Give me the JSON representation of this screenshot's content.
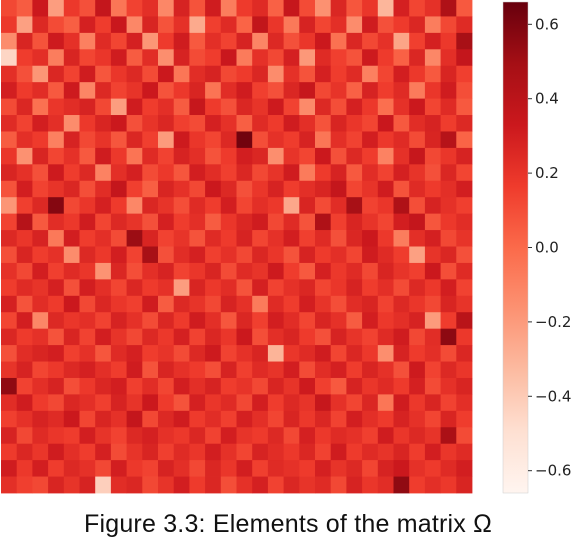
{
  "chart_data": {
    "type": "heatmap",
    "rows": 30,
    "cols": 30,
    "colormap": "Reds",
    "color_stops": [
      "#fff5f0",
      "#fee0d2",
      "#fcbba1",
      "#fc9272",
      "#fb6a4a",
      "#ef3b2c",
      "#cb181d",
      "#a50f15",
      "#67000d"
    ],
    "vmin": -0.66,
    "vmax": 0.66,
    "colorbar": {
      "ticks": [
        0.6,
        0.4,
        0.2,
        0.0,
        -0.2,
        -0.4,
        -0.6
      ],
      "tick_labels": [
        "0.6",
        "0.4",
        "0.2",
        "0.0",
        "−0.2",
        "−0.4",
        "−0.6"
      ]
    },
    "values": [
      [
        0.12,
        0.05,
        0.33,
        -0.21,
        0.18,
        0.09,
        0.36,
        -0.05,
        0.14,
        0.22,
        -0.12,
        0.28,
        0.08,
        0.31,
        -0.08,
        0.17,
        0.24,
        0.03,
        0.35,
        0.11,
        -0.16,
        0.26,
        0.07,
        0.19,
        -0.31,
        0.29,
        0.13,
        0.21,
        0.45,
        0.06
      ],
      [
        0.18,
        -0.22,
        0.25,
        0.11,
        0.04,
        0.29,
        0.16,
        0.34,
        -0.12,
        0.27,
        0.08,
        0.21,
        -0.26,
        0.15,
        0.24,
        0.02,
        0.37,
        0.19,
        -0.06,
        0.28,
        0.13,
        0.22,
        -0.14,
        0.31,
        0.09,
        0.17,
        0.26,
        -0.08,
        0.12,
        0.24
      ],
      [
        -0.14,
        0.27,
        0.08,
        0.32,
        0.21,
        -0.09,
        0.24,
        0.13,
        0.29,
        -0.18,
        0.17,
        0.31,
        0.06,
        0.22,
        0.14,
        0.28,
        -0.11,
        0.25,
        0.09,
        0.19,
        0.33,
        -0.03,
        0.26,
        0.12,
        0.21,
        -0.24,
        0.15,
        0.29,
        0.18,
        0.48
      ],
      [
        -0.45,
        0.16,
        0.22,
        -0.08,
        0.27,
        0.13,
        0.19,
        0.31,
        0.05,
        0.23,
        -0.15,
        0.28,
        0.11,
        0.16,
        0.34,
        -0.07,
        0.21,
        0.12,
        0.29,
        -0.19,
        0.24,
        0.15,
        0.08,
        0.32,
        0.17,
        0.03,
        0.26,
        -0.12,
        0.22,
        0.36
      ],
      [
        0.22,
        0.09,
        -0.18,
        0.26,
        0.14,
        0.31,
        0.07,
        0.19,
        0.25,
        0.11,
        0.33,
        -0.05,
        0.23,
        0.28,
        0.12,
        0.17,
        0.26,
        -0.14,
        0.21,
        0.08,
        0.29,
        0.16,
        0.24,
        -0.09,
        0.13,
        0.3,
        0.18,
        0.06,
        0.27,
        0.15
      ],
      [
        0.3,
        0.17,
        0.23,
        0.06,
        0.32,
        -0.11,
        0.25,
        0.14,
        0.2,
        0.33,
        0.08,
        0.18,
        0.27,
        -0.04,
        0.23,
        0.31,
        0.15,
        0.09,
        0.26,
        0.35,
        0.12,
        0.2,
        0.03,
        0.28,
        0.16,
        0.24,
        -0.07,
        0.19,
        0.31,
        0.1
      ],
      [
        0.11,
        0.26,
        -0.03,
        0.19,
        0.23,
        0.28,
        0.12,
        -0.21,
        0.31,
        0.16,
        0.22,
        0.05,
        0.35,
        0.17,
        0.09,
        0.26,
        0.2,
        0.32,
        0.14,
        -0.13,
        0.25,
        0.1,
        0.29,
        0.18,
        -0.02,
        0.21,
        0.33,
        0.13,
        0.24,
        0.06
      ],
      [
        0.24,
        0.14,
        0.3,
        0.22,
        -0.14,
        0.18,
        0.27,
        0.33,
        0.09,
        0.2,
        0.26,
        0.15,
        0.11,
        0.29,
        0.21,
        0.04,
        0.24,
        0.17,
        0.31,
        0.22,
        0.08,
        0.27,
        0.19,
        0.13,
        0.34,
        0.06,
        0.23,
        0.28,
        0.16,
        0.25
      ],
      [
        0.05,
        0.22,
        0.17,
        -0.09,
        0.28,
        0.12,
        0.2,
        0.07,
        0.26,
        0.15,
        -0.2,
        0.32,
        0.19,
        0.13,
        0.25,
        0.63,
        0.1,
        0.21,
        0.16,
        0.28,
        -0.05,
        0.22,
        0.14,
        0.3,
        0.18,
        0.24,
        0.11,
        0.27,
        0.42,
        0.02
      ],
      [
        0.19,
        -0.16,
        0.27,
        0.13,
        0.21,
        0.06,
        0.31,
        0.18,
        -0.04,
        0.24,
        0.14,
        0.28,
        0.22,
        0.08,
        0.17,
        0.3,
        0.26,
        -0.15,
        0.2,
        0.13,
        0.33,
        0.09,
        0.25,
        0.16,
        -0.1,
        0.21,
        0.35,
        0.12,
        0.19,
        0.28
      ],
      [
        0.27,
        0.21,
        0.09,
        0.32,
        0.16,
        0.25,
        -0.1,
        0.22,
        0.29,
        0.11,
        0.18,
        0.07,
        0.3,
        0.23,
        0.15,
        0.26,
        0.12,
        0.2,
        0.31,
        -0.07,
        0.17,
        0.28,
        0.06,
        0.23,
        0.14,
        0.29,
        0.2,
        0.09,
        0.26,
        0.13
      ],
      [
        0.08,
        0.3,
        0.14,
        0.2,
        0.26,
        0.1,
        0.23,
        0.36,
        0.15,
        0.04,
        0.27,
        0.21,
        0.12,
        0.33,
        0.25,
        0.09,
        0.19,
        0.28,
        0.16,
        0.22,
        0.27,
        0.36,
        0.13,
        0.2,
        0.31,
        0.08,
        0.24,
        0.17,
        0.22,
        0.3
      ],
      [
        -0.18,
        0.15,
        0.25,
        0.58,
        0.12,
        0.19,
        0.29,
        0.17,
        -0.12,
        0.26,
        0.2,
        0.1,
        0.24,
        0.16,
        0.3,
        0.13,
        0.22,
        0.18,
        -0.25,
        0.27,
        0.11,
        0.23,
        0.48,
        0.14,
        0.19,
        0.45,
        0.1,
        0.28,
        0.21,
        0.15
      ],
      [
        0.14,
        0.42,
        0.06,
        0.23,
        0.18,
        0.31,
        0.13,
        0.25,
        0.2,
        0.09,
        0.29,
        0.16,
        0.22,
        0.05,
        0.19,
        0.26,
        0.31,
        0.12,
        0.24,
        0.08,
        0.45,
        0.15,
        0.27,
        0.2,
        0.13,
        0.3,
        0.36,
        0.07,
        0.18,
        0.23
      ],
      [
        0.25,
        0.19,
        0.28,
        -0.06,
        0.3,
        0.16,
        0.22,
        0.11,
        0.52,
        0.27,
        0.14,
        0.2,
        0.08,
        0.24,
        0.17,
        0.28,
        0.13,
        0.21,
        0.3,
        0.15,
        0.24,
        0.09,
        0.26,
        0.33,
        0.18,
        -0.08,
        0.22,
        0.29,
        0.12,
        0.2
      ],
      [
        0.1,
        0.27,
        0.16,
        0.21,
        -0.14,
        0.25,
        0.18,
        0.3,
        0.14,
        0.48,
        0.09,
        0.23,
        0.29,
        0.15,
        0.21,
        0.12,
        0.26,
        0.19,
        0.08,
        0.28,
        0.17,
        0.22,
        0.13,
        0.31,
        0.24,
        0.16,
        -0.22,
        0.2,
        0.26,
        0.09
      ],
      [
        0.21,
        0.12,
        0.3,
        0.15,
        0.24,
        0.19,
        -0.17,
        0.26,
        0.1,
        0.22,
        0.28,
        0.14,
        0.19,
        0.27,
        0.11,
        0.24,
        0.2,
        0.32,
        0.16,
        0.06,
        0.29,
        0.18,
        0.24,
        0.12,
        0.27,
        0.2,
        0.15,
        0.33,
        0.1,
        0.24
      ],
      [
        0.16,
        0.24,
        0.2,
        0.29,
        0.09,
        0.3,
        0.22,
        0.13,
        0.26,
        0.17,
        0.21,
        -0.21,
        0.27,
        0.18,
        0.23,
        0.08,
        0.29,
        0.14,
        0.21,
        0.26,
        0.13,
        0.19,
        0.28,
        0.16,
        0.22,
        0.11,
        0.25,
        0.18,
        0.3,
        0.14
      ],
      [
        0.29,
        0.08,
        0.23,
        0.17,
        0.33,
        0.12,
        0.26,
        0.19,
        0.15,
        0.31,
        0.05,
        0.25,
        0.2,
        0.12,
        0.28,
        0.21,
        -0.07,
        0.24,
        0.16,
        0.3,
        0.2,
        0.1,
        0.23,
        0.27,
        0.14,
        0.25,
        0.19,
        0.12,
        0.27,
        0.2
      ],
      [
        0.13,
        0.3,
        -0.12,
        0.25,
        0.19,
        0.22,
        0.14,
        0.28,
        0.21,
        0.11,
        0.26,
        0.17,
        0.31,
        0.22,
        0.07,
        0.26,
        0.15,
        0.3,
        0.23,
        0.13,
        0.27,
        0.21,
        0.05,
        0.3,
        0.18,
        0.22,
        0.28,
        -0.2,
        0.16,
        0.41
      ],
      [
        0.26,
        0.17,
        0.21,
        0.08,
        0.27,
        0.14,
        0.3,
        0.2,
        0.12,
        0.25,
        0.18,
        0.29,
        0.14,
        0.26,
        0.19,
        0.33,
        0.1,
        0.22,
        0.27,
        0.17,
        0.09,
        0.28,
        0.2,
        0.14,
        0.24,
        0.31,
        0.12,
        0.23,
        0.56,
        0.18
      ],
      [
        0.09,
        0.23,
        0.27,
        0.3,
        0.15,
        0.21,
        0.07,
        0.24,
        0.29,
        0.16,
        0.2,
        0.11,
        0.25,
        0.32,
        0.14,
        0.21,
        0.27,
        -0.3,
        0.19,
        0.24,
        0.31,
        0.13,
        0.26,
        0.18,
        -0.15,
        0.28,
        0.17,
        0.22,
        0.11,
        0.26
      ],
      [
        0.2,
        0.28,
        0.13,
        0.18,
        0.25,
        0.29,
        0.22,
        0.16,
        0.31,
        0.08,
        0.27,
        0.21,
        0.17,
        0.1,
        0.28,
        0.15,
        0.24,
        0.2,
        0.3,
        0.11,
        0.23,
        0.29,
        0.16,
        0.27,
        0.21,
        0.09,
        0.32,
        0.14,
        0.25,
        0.19
      ],
      [
        0.55,
        0.14,
        0.22,
        0.28,
        0.1,
        0.18,
        0.26,
        0.3,
        0.15,
        0.23,
        0.13,
        0.3,
        0.22,
        0.28,
        0.16,
        0.2,
        0.12,
        0.27,
        0.2,
        0.32,
        0.15,
        0.06,
        0.28,
        0.19,
        0.24,
        0.17,
        0.29,
        0.11,
        0.21,
        0.27
      ],
      [
        0.23,
        0.31,
        0.17,
        0.12,
        0.26,
        0.22,
        0.15,
        0.28,
        0.2,
        0.33,
        0.17,
        0.08,
        0.29,
        0.19,
        0.24,
        0.12,
        0.3,
        0.16,
        0.25,
        0.2,
        0.35,
        0.21,
        0.13,
        0.26,
        -0.05,
        0.31,
        0.18,
        0.27,
        0.14,
        0.22
      ],
      [
        0.15,
        0.21,
        0.28,
        0.24,
        0.33,
        0.13,
        0.27,
        0.21,
        0.36,
        0.12,
        0.25,
        0.31,
        0.17,
        0.23,
        0.15,
        0.29,
        0.22,
        0.13,
        0.27,
        0.18,
        0.26,
        0.14,
        0.3,
        0.22,
        0.17,
        0.28,
        0.21,
        0.13,
        0.27,
        0.16
      ],
      [
        0.28,
        0.12,
        0.24,
        0.19,
        0.16,
        0.3,
        0.2,
        0.14,
        0.25,
        0.29,
        0.21,
        0.18,
        0.26,
        0.14,
        0.3,
        0.2,
        0.17,
        0.25,
        0.12,
        0.29,
        0.18,
        0.24,
        0.21,
        0.15,
        0.31,
        0.19,
        0.25,
        0.2,
        0.47,
        0.11
      ],
      [
        0.17,
        0.26,
        0.19,
        0.31,
        0.22,
        0.16,
        0.29,
        0.11,
        0.2,
        0.27,
        0.15,
        0.24,
        0.19,
        0.3,
        0.21,
        0.13,
        0.28,
        0.23,
        0.18,
        0.26,
        0.14,
        0.31,
        0.17,
        0.24,
        0.2,
        0.27,
        0.16,
        0.3,
        0.19,
        0.24
      ],
      [
        0.31,
        0.18,
        0.3,
        0.16,
        0.25,
        0.21,
        0.12,
        0.3,
        0.18,
        0.14,
        0.28,
        0.22,
        0.12,
        0.26,
        0.19,
        0.3,
        0.15,
        0.24,
        0.21,
        0.17,
        0.29,
        0.2,
        0.25,
        0.13,
        0.28,
        0.33,
        0.21,
        0.17,
        0.24,
        0.3
      ],
      [
        0.22,
        0.15,
        0.12,
        0.27,
        0.2,
        0.28,
        -0.42,
        0.23,
        0.26,
        0.12,
        0.2,
        0.3,
        0.17,
        0.26,
        0.1,
        0.21,
        0.29,
        0.14,
        0.26,
        0.2,
        0.24,
        0.12,
        0.28,
        0.19,
        0.23,
        0.55,
        0.16,
        0.22,
        0.18,
        0.27
      ]
    ],
    "title": "",
    "xlabel": "",
    "ylabel": ""
  },
  "caption": "Figure 3.3:  Elements of the matrix Ω"
}
